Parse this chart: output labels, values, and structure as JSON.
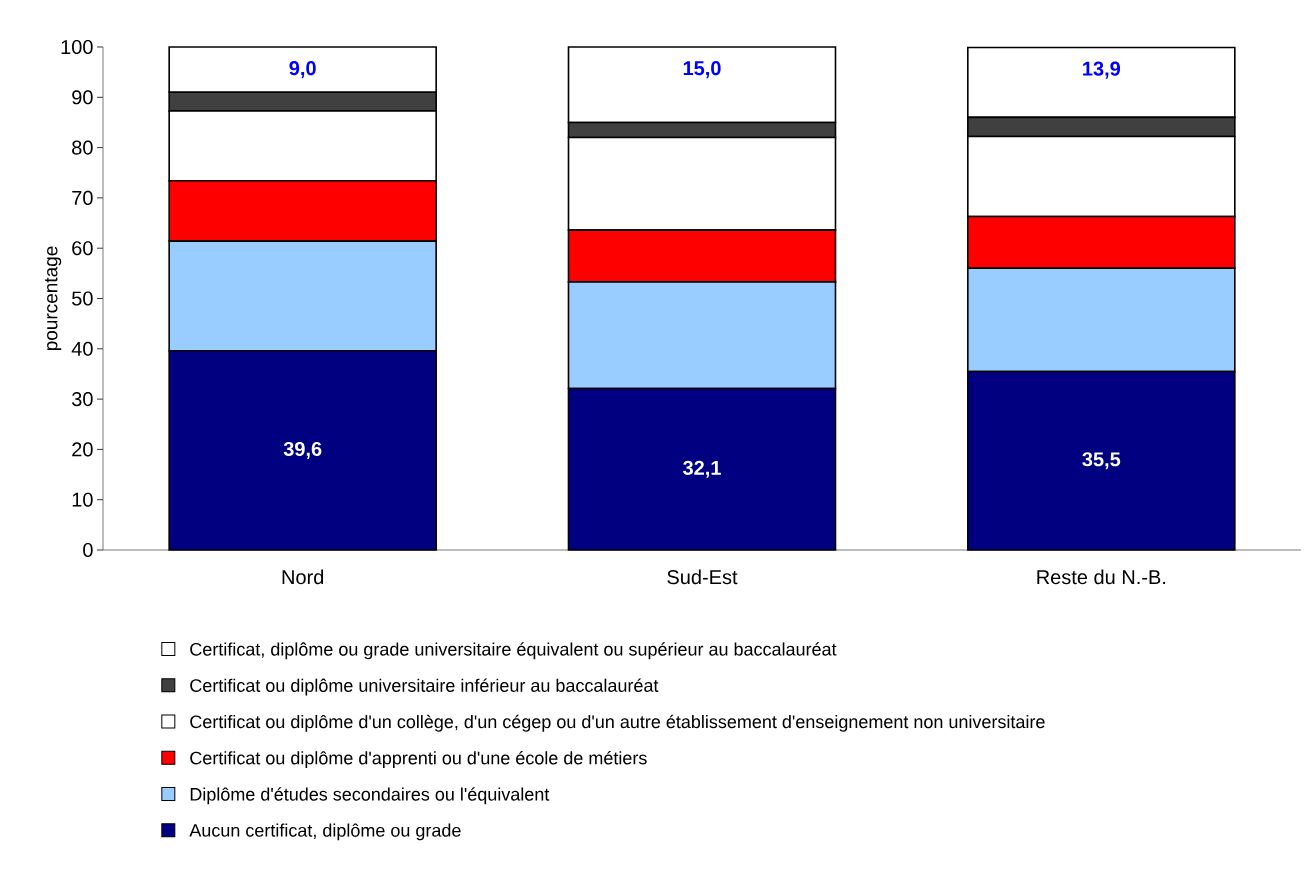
{
  "chart_data": {
    "type": "bar",
    "stacked": true,
    "ylabel": "pourcentage",
    "categories": [
      "Nord",
      "Sud-Est",
      "Reste du N.-B."
    ],
    "ylim": [
      0,
      100
    ],
    "yticks": [
      0,
      10,
      20,
      30,
      40,
      50,
      60,
      70,
      80,
      90,
      100
    ],
    "legend": "bottom",
    "series": [
      {
        "name": "Aucun certificat, diplôme ou grade",
        "color": "#000080",
        "values": [
          39.6,
          32.1,
          35.5
        ],
        "value_labels": [
          "39,6",
          "32,1",
          "35,5"
        ]
      },
      {
        "name": "Diplôme d'études secondaires ou l'équivalent",
        "color": "#99ccff",
        "values": [
          21.8,
          21.2,
          20.5
        ]
      },
      {
        "name": "Certificat ou diplôme d'apprenti ou d'une école de métiers",
        "color": "#ff0000",
        "values": [
          12.0,
          10.3,
          10.3
        ]
      },
      {
        "name": "Certificat ou diplôme d'un collège, d'un cégep ou d'un autre établissement d'enseignement non universitaire",
        "color": "#ffffff",
        "values": [
          13.9,
          18.4,
          15.9
        ]
      },
      {
        "name": "Certificat ou diplôme universitaire inférieur au baccalauréat",
        "color": "#404040",
        "values": [
          3.7,
          3.0,
          3.8
        ]
      },
      {
        "name": "Certificat, diplôme ou grade universitaire équivalent ou supérieur au baccalauréat",
        "color": "#ffffff",
        "values": [
          9.0,
          15.0,
          13.9
        ],
        "value_labels": [
          "9,0",
          "15,0",
          "13,9"
        ]
      }
    ]
  }
}
